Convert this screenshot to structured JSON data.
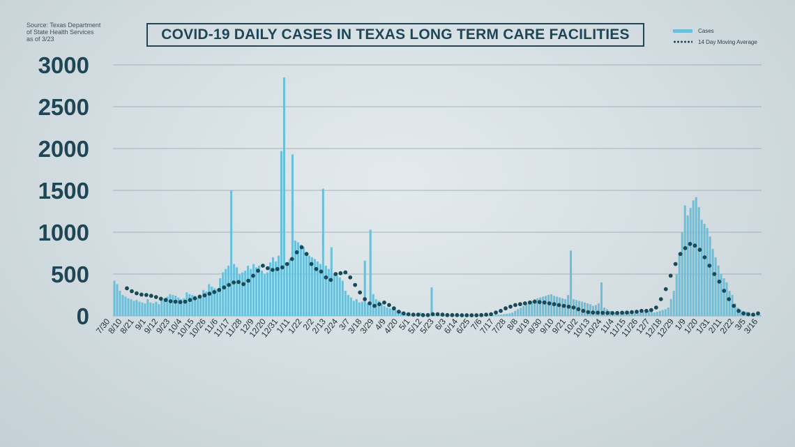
{
  "source_note": "Source: Texas Department\nof State Health Services\nas of 3/23",
  "legend": {
    "cases": "Cases",
    "moving_average": "14 Day Moving Average"
  },
  "colors": {
    "bars": "#6bbfd9",
    "moving_average": "#1a4a57",
    "axis_text": "#1f4656",
    "title": "#1f4656"
  },
  "chart_data": {
    "type": "bar",
    "title": "COVID-19 DAILY CASES IN TEXAS LONG TERM CARE FACILITIES",
    "xlabel": "",
    "ylabel": "",
    "ylim": [
      0,
      3000
    ],
    "yticks": [
      0,
      500,
      1000,
      1500,
      2000,
      2500,
      3000
    ],
    "grid": true,
    "legend_position": "top-right",
    "xtick_labels": [
      "7/30",
      "8/10",
      "8/21",
      "9/1",
      "9/12",
      "9/23",
      "10/4",
      "10/15",
      "10/26",
      "11/6",
      "11/17",
      "11/28",
      "12/9",
      "12/20",
      "12/31",
      "1/11",
      "1/22",
      "2/2",
      "2/13",
      "2/24",
      "3/7",
      "3/18",
      "3/29",
      "4/9",
      "4/20",
      "5/1",
      "5/12",
      "5/23",
      "6/3",
      "6/14",
      "6/25",
      "7/6",
      "7/17",
      "7/28",
      "8/8",
      "8/19",
      "8/30",
      "9/10",
      "9/21",
      "10/2",
      "10/13",
      "10/24",
      "11/4",
      "11/15",
      "11/26",
      "12/7",
      "12/18",
      "12/29",
      "1/9",
      "1/20",
      "1/31",
      "2/11",
      "2/22",
      "3/5",
      "3/16"
    ],
    "series": [
      {
        "name": "Cases",
        "type": "bar",
        "values": [
          420,
          380,
          300,
          250,
          230,
          210,
          200,
          180,
          190,
          170,
          160,
          150,
          200,
          160,
          150,
          170,
          140,
          200,
          210,
          230,
          260,
          250,
          240,
          220,
          200,
          210,
          280,
          260,
          250,
          240,
          220,
          230,
          310,
          290,
          380,
          350,
          330,
          320,
          450,
          520,
          560,
          600,
          1500,
          620,
          580,
          500,
          520,
          540,
          600,
          560,
          620,
          580,
          600,
          540,
          500,
          520,
          640,
          700,
          650,
          720,
          1970,
          2850,
          620,
          680,
          1930,
          900,
          880,
          850,
          820,
          760,
          720,
          700,
          680,
          650,
          620,
          1520,
          600,
          560,
          820,
          500,
          480,
          460,
          420,
          300,
          250,
          220,
          180,
          200,
          160,
          170,
          660,
          150,
          1030,
          260,
          200,
          180,
          150,
          120,
          100,
          90,
          80,
          70,
          60,
          50,
          40,
          30,
          25,
          20,
          20,
          15,
          40,
          15,
          10,
          10,
          340,
          10,
          8,
          8,
          10,
          15,
          10,
          10,
          8,
          8,
          10,
          12,
          10,
          8,
          8,
          10,
          10,
          8,
          8,
          10,
          12,
          10,
          10,
          12,
          15,
          15,
          20,
          25,
          30,
          40,
          60,
          80,
          100,
          120,
          150,
          160,
          180,
          200,
          210,
          220,
          230,
          240,
          250,
          260,
          240,
          230,
          220,
          210,
          200,
          250,
          780,
          200,
          190,
          180,
          170,
          160,
          150,
          140,
          120,
          130,
          150,
          400,
          100,
          80,
          60,
          50,
          40,
          40,
          50,
          45,
          40,
          40,
          30,
          35,
          40,
          40,
          45,
          50,
          60,
          80,
          40,
          50,
          60,
          70,
          80,
          100,
          200,
          300,
          500,
          750,
          1000,
          1320,
          1200,
          1290,
          1380,
          1420,
          1300,
          1150,
          1100,
          1050,
          950,
          800,
          700,
          600,
          500,
          450,
          400,
          300,
          250,
          150,
          100,
          70,
          60,
          50,
          30,
          20,
          15,
          10,
          10
        ]
      },
      {
        "name": "14 Day Moving Average",
        "type": "line",
        "values": [
          330,
          295,
          270,
          255,
          250,
          240,
          225,
          205,
          190,
          175,
          170,
          165,
          170,
          190,
          210,
          230,
          245,
          265,
          285,
          310,
          340,
          370,
          400,
          405,
          380,
          420,
          480,
          540,
          600,
          570,
          550,
          560,
          580,
          620,
          680,
          760,
          820,
          740,
          620,
          560,
          530,
          460,
          430,
          500,
          510,
          520,
          460,
          370,
          280,
          200,
          150,
          120,
          140,
          160,
          130,
          90,
          50,
          30,
          20,
          15,
          15,
          10,
          10,
          20,
          20,
          15,
          10,
          10,
          10,
          8,
          8,
          8,
          8,
          10,
          15,
          20,
          40,
          60,
          90,
          110,
          130,
          140,
          150,
          160,
          170,
          165,
          160,
          150,
          140,
          130,
          120,
          110,
          100,
          80,
          60,
          45,
          40,
          38,
          36,
          35,
          34,
          35,
          38,
          40,
          45,
          50,
          60,
          60,
          70,
          100,
          200,
          320,
          480,
          620,
          740,
          810,
          860,
          840,
          790,
          700,
          600,
          500,
          410,
          300,
          200,
          120,
          60,
          30,
          20,
          15,
          30
        ]
      }
    ]
  }
}
